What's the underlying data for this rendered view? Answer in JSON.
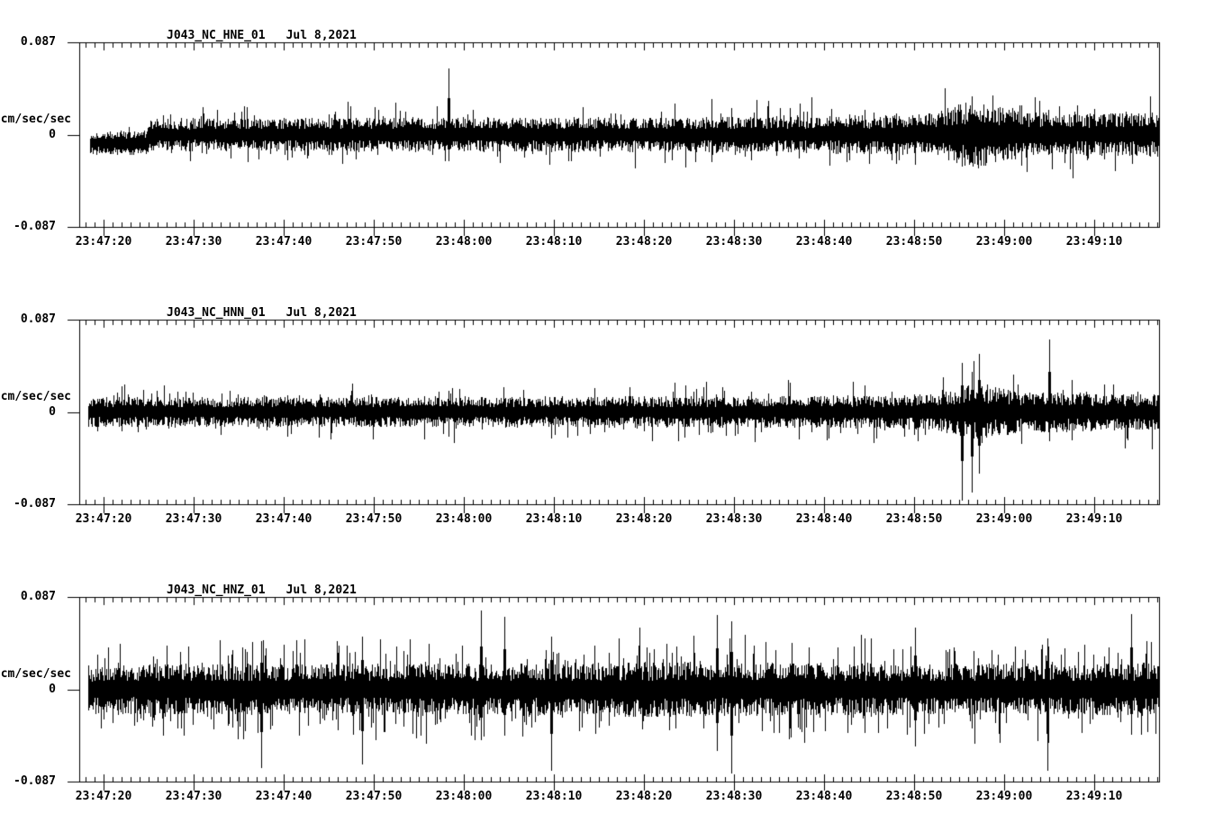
{
  "page": {
    "background": "#ffffff",
    "text_color": "#000000",
    "trace_color": "#000000"
  },
  "chart_data": [
    {
      "type": "line",
      "chart_kind": "seismogram",
      "title": "J043_NC_HNE_01",
      "date_label": "Jul 8,2021",
      "ylabel": "cm/sec/sec",
      "units": "cm/sec/sec",
      "ylim": [
        -0.087,
        0.087
      ],
      "ytick_labels": [
        "0.087",
        "0",
        "-0.087"
      ],
      "xtick_labels": [
        "23:47:20",
        "23:47:30",
        "23:47:40",
        "23:47:50",
        "23:48:00",
        "23:48:10",
        "23:48:20",
        "23:48:30",
        "23:48:40",
        "23:48:50",
        "23:49:00",
        "23:49:10"
      ],
      "x_start_time": "23:47:17",
      "x_end_time": "23:49:17",
      "x_range_seconds": 120,
      "x_major_tick_seconds": 10,
      "x_minor_tick_seconds": 1,
      "grid": false,
      "legend": false,
      "waveform": {
        "seed": 101,
        "trace_start_s": 1.2,
        "spike_prob": 0.1,
        "offset_env": [
          [
            0,
            -0.008
          ],
          [
            7.5,
            -0.008
          ],
          [
            8,
            0
          ],
          [
            120,
            0
          ]
        ],
        "core_env": [
          [
            0,
            0.009
          ],
          [
            1.2,
            0.01
          ],
          [
            7,
            0.011
          ],
          [
            8,
            0.014
          ],
          [
            20,
            0.014
          ],
          [
            40,
            0.015
          ],
          [
            60,
            0.015
          ],
          [
            80,
            0.016
          ],
          [
            90,
            0.017
          ],
          [
            94,
            0.018
          ],
          [
            96,
            0.022
          ],
          [
            98,
            0.028
          ],
          [
            99.7,
            0.03
          ],
          [
            101,
            0.026
          ],
          [
            103,
            0.022
          ],
          [
            106,
            0.019
          ],
          [
            110,
            0.018
          ],
          [
            120,
            0.019
          ]
        ],
        "peak_env": [
          [
            0,
            0.014
          ],
          [
            7,
            0.016
          ],
          [
            8,
            0.028
          ],
          [
            20,
            0.03
          ],
          [
            40,
            0.032
          ],
          [
            60,
            0.033
          ],
          [
            80,
            0.035
          ],
          [
            90,
            0.038
          ],
          [
            94,
            0.042
          ],
          [
            96,
            0.05
          ],
          [
            98,
            0.068
          ],
          [
            99.7,
            0.075
          ],
          [
            101,
            0.062
          ],
          [
            103,
            0.052
          ],
          [
            106,
            0.046
          ],
          [
            110,
            0.044
          ],
          [
            120,
            0.045
          ]
        ],
        "events": [
          [
            41.0,
            0.062,
            -0.025
          ]
        ]
      }
    },
    {
      "type": "line",
      "chart_kind": "seismogram",
      "title": "J043_NC_HNN_01",
      "date_label": "Jul 8,2021",
      "ylabel": "cm/sec/sec",
      "units": "cm/sec/sec",
      "ylim": [
        -0.087,
        0.087
      ],
      "ytick_labels": [
        "0.087",
        "0",
        "-0.087"
      ],
      "xtick_labels": [
        "23:47:20",
        "23:47:30",
        "23:47:40",
        "23:47:50",
        "23:48:00",
        "23:48:10",
        "23:48:20",
        "23:48:30",
        "23:48:40",
        "23:48:50",
        "23:49:00",
        "23:49:10"
      ],
      "x_start_time": "23:47:17",
      "x_end_time": "23:49:17",
      "x_range_seconds": 120,
      "x_major_tick_seconds": 10,
      "x_minor_tick_seconds": 1,
      "grid": false,
      "legend": false,
      "waveform": {
        "seed": 202,
        "trace_start_s": 1.0,
        "spike_prob": 0.1,
        "offset_env": [
          [
            0,
            0
          ],
          [
            120,
            0
          ]
        ],
        "core_env": [
          [
            0,
            0.013
          ],
          [
            40,
            0.013
          ],
          [
            80,
            0.014
          ],
          [
            90,
            0.014
          ],
          [
            95,
            0.016
          ],
          [
            97,
            0.019
          ],
          [
            99,
            0.024
          ],
          [
            101,
            0.022
          ],
          [
            104,
            0.019
          ],
          [
            108,
            0.017
          ],
          [
            114,
            0.016
          ],
          [
            120,
            0.016
          ]
        ],
        "peak_env": [
          [
            0,
            0.028
          ],
          [
            40,
            0.03
          ],
          [
            80,
            0.032
          ],
          [
            90,
            0.034
          ],
          [
            95,
            0.04
          ],
          [
            97,
            0.05
          ],
          [
            99,
            0.058
          ],
          [
            101,
            0.052
          ],
          [
            104,
            0.044
          ],
          [
            108,
            0.042
          ],
          [
            114,
            0.04
          ],
          [
            120,
            0.04
          ]
        ],
        "events": [
          [
            98.0,
            0.046,
            -0.084
          ],
          [
            99.1,
            0.038,
            -0.076
          ],
          [
            99.9,
            0.055,
            -0.058
          ],
          [
            107.7,
            0.068,
            -0.028
          ]
        ]
      }
    },
    {
      "type": "line",
      "chart_kind": "seismogram",
      "title": "J043_NC_HNZ_01",
      "date_label": "Jul 8,2021",
      "ylabel": "cm/sec/sec",
      "units": "cm/sec/sec",
      "ylim": [
        -0.087,
        0.087
      ],
      "ytick_labels": [
        "0.087",
        "0",
        "-0.087"
      ],
      "xtick_labels": [
        "23:47:20",
        "23:47:30",
        "23:47:40",
        "23:47:50",
        "23:48:00",
        "23:48:10",
        "23:48:20",
        "23:48:30",
        "23:48:40",
        "23:48:50",
        "23:49:00",
        "23:49:10"
      ],
      "x_start_time": "23:47:17",
      "x_end_time": "23:49:17",
      "x_range_seconds": 120,
      "x_major_tick_seconds": 10,
      "x_minor_tick_seconds": 1,
      "grid": false,
      "legend": false,
      "waveform": {
        "seed": 303,
        "trace_start_s": 1.0,
        "spike_prob": 0.18,
        "offset_env": [
          [
            0,
            0
          ],
          [
            120,
            0
          ]
        ],
        "core_env": [
          [
            0,
            0.021
          ],
          [
            20,
            0.022
          ],
          [
            45,
            0.022
          ],
          [
            65,
            0.024
          ],
          [
            75,
            0.023
          ],
          [
            95,
            0.022
          ],
          [
            110,
            0.022
          ],
          [
            120,
            0.023
          ]
        ],
        "peak_env": [
          [
            0,
            0.048
          ],
          [
            20,
            0.052
          ],
          [
            45,
            0.055
          ],
          [
            65,
            0.058
          ],
          [
            80,
            0.054
          ],
          [
            95,
            0.052
          ],
          [
            110,
            0.054
          ],
          [
            120,
            0.056
          ]
        ],
        "events": [
          [
            20.2,
            0.045,
            -0.074
          ],
          [
            31.4,
            0.05,
            -0.071
          ],
          [
            44.6,
            0.074,
            -0.048
          ],
          [
            47.2,
            0.068,
            -0.044
          ],
          [
            52.4,
            0.05,
            -0.077
          ],
          [
            70.8,
            0.07,
            -0.058
          ],
          [
            72.4,
            0.064,
            -0.079
          ],
          [
            92.8,
            0.058,
            -0.054
          ],
          [
            107.5,
            0.048,
            -0.077
          ],
          [
            116.8,
            0.071,
            -0.043
          ]
        ]
      }
    }
  ]
}
